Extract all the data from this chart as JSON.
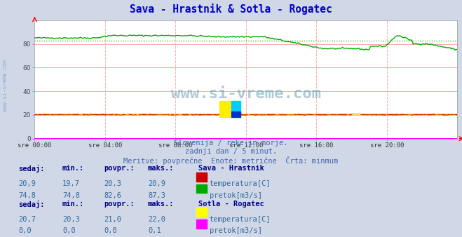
{
  "title": "Sava - Hrastnik & Sotla - Rogatec",
  "title_color": "#0000cc",
  "bg_color": "#d0d8e8",
  "plot_bg_color": "#ffffff",
  "grid_color": "#ffaaaa",
  "xlabel_ticks": [
    "sre 00:00",
    "sre 04:00",
    "sre 08:00",
    "sre 12:00",
    "sre 16:00",
    "sre 20:00"
  ],
  "ylim": [
    0,
    100
  ],
  "yticks": [
    0,
    20,
    40,
    60,
    80
  ],
  "n_points": 288,
  "watermark_text": "www.si-vreme.com",
  "subtitle1": "Slovenija / reke in morje.",
  "subtitle2": "zadnji dan / 5 minut.",
  "subtitle3": "Meritve: povprečne  Enote: metrične  Črta: minmum",
  "subtitle_color": "#4466aa",
  "legend_header_color": "#000088",
  "legend_value_color": "#336699",
  "sava_temp_color": "#cc0000",
  "sava_flow_color": "#00aa00",
  "sotla_temp_color": "#ffff00",
  "sotla_flow_color": "#ff00ff",
  "sava_flow_avg": 82.6,
  "sava_temp_avg": 20.3,
  "sotla_temp_avg": 21.0,
  "sava_temp_sedaj": "20,9",
  "sava_temp_min": "19,7",
  "sava_temp_povpr": "20,3",
  "sava_temp_maks": "20,9",
  "sava_flow_sedaj": "74,8",
  "sava_flow_min": "74,8",
  "sava_flow_povpr": "82,6",
  "sava_flow_maks": "87,3",
  "sotla_temp_sedaj": "20,7",
  "sotla_temp_min": "20,3",
  "sotla_temp_povpr": "21,0",
  "sotla_temp_maks": "22,0",
  "sotla_flow_sedaj": "0,0",
  "sotla_flow_min": "0,0",
  "sotla_flow_povpr": "0,0",
  "sotla_flow_maks": "0,1"
}
